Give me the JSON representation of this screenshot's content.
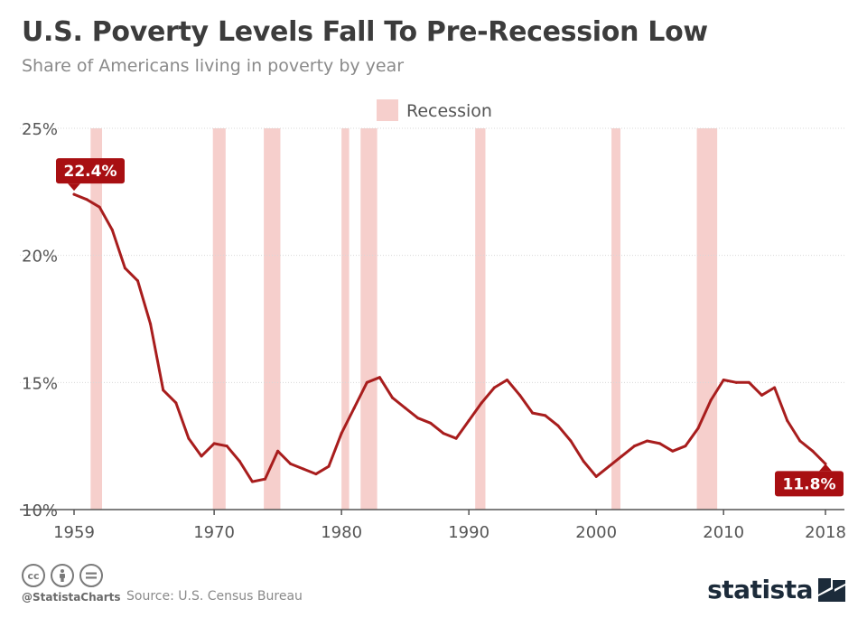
{
  "header": {
    "title": "U.S. Poverty Levels Fall To Pre-Recession Low",
    "subtitle": "Share of Americans living in poverty by year"
  },
  "footer": {
    "handle": "@StatistaCharts",
    "source": "Source: U.S. Census Bureau",
    "brand": "statista",
    "icons": [
      "creative-commons-icon",
      "attribution-icon",
      "no-derivatives-icon"
    ]
  },
  "colors": {
    "line": "#a81d1d",
    "recession": "#f6cfcc",
    "label_bg": "#a80f12",
    "grid": "#d8d8d8",
    "text": "#3c3c3c",
    "muted": "#8a8a8a",
    "brand": "#1c2b3a"
  },
  "chart_data": {
    "type": "line",
    "title": "U.S. Poverty Levels Fall To Pre-Recession Low",
    "subtitle": "Share of Americans living in poverty by year",
    "xlabel": "",
    "ylabel": "",
    "ylim": [
      10,
      25
    ],
    "xlim": [
      1959,
      2018
    ],
    "yticks": [
      10,
      15,
      20,
      25
    ],
    "yticklabels": [
      "10%",
      "15%",
      "20%",
      "25%"
    ],
    "xticks": [
      1959,
      1970,
      1980,
      1990,
      2000,
      2010,
      2018
    ],
    "xticklabels": [
      "1959",
      "1970",
      "1980",
      "1990",
      "2000",
      "2010",
      "2018"
    ],
    "grid": true,
    "legend": {
      "label": "Recession",
      "placement": "top-center"
    },
    "recessions": [
      [
        1960.3,
        1961.2
      ],
      [
        1969.9,
        1970.9
      ],
      [
        1973.9,
        1975.2
      ],
      [
        1980.0,
        1980.6
      ],
      [
        1981.5,
        1982.8
      ],
      [
        1990.5,
        1991.3
      ],
      [
        2001.2,
        2001.9
      ],
      [
        2007.9,
        2009.5
      ]
    ],
    "series": [
      {
        "x": [
          1959,
          1960,
          1961,
          1962,
          1963,
          1964,
          1965,
          1966,
          1967,
          1968,
          1969,
          1970,
          1971,
          1972,
          1973,
          1974,
          1975,
          1976,
          1977,
          1978,
          1979,
          1980,
          1981,
          1982,
          1983,
          1984,
          1985,
          1986,
          1987,
          1988,
          1989,
          1990,
          1991,
          1992,
          1993,
          1994,
          1995,
          1996,
          1997,
          1998,
          1999,
          2000,
          2001,
          2002,
          2003,
          2004,
          2005,
          2006,
          2007,
          2008,
          2009,
          2010,
          2011,
          2012,
          2013,
          2014,
          2015,
          2016,
          2017,
          2018
        ],
        "values": [
          22.4,
          22.2,
          21.9,
          21.0,
          19.5,
          19.0,
          17.3,
          14.7,
          14.2,
          12.8,
          12.1,
          12.6,
          12.5,
          11.9,
          11.1,
          11.2,
          12.3,
          11.8,
          11.6,
          11.4,
          11.7,
          13.0,
          14.0,
          15.0,
          15.2,
          14.4,
          14.0,
          13.6,
          13.4,
          13.0,
          12.8,
          13.5,
          14.2,
          14.8,
          15.1,
          14.5,
          13.8,
          13.7,
          13.3,
          12.7,
          11.9,
          11.3,
          11.7,
          12.1,
          12.5,
          12.7,
          12.6,
          12.3,
          12.5,
          13.2,
          14.3,
          15.1,
          15.0,
          15.0,
          14.5,
          14.8,
          13.5,
          12.7,
          12.3,
          11.8
        ]
      }
    ],
    "annotations": [
      {
        "x": 1959,
        "value": 22.4,
        "text": "22.4%"
      },
      {
        "x": 2018,
        "value": 11.8,
        "text": "11.8%"
      }
    ]
  }
}
